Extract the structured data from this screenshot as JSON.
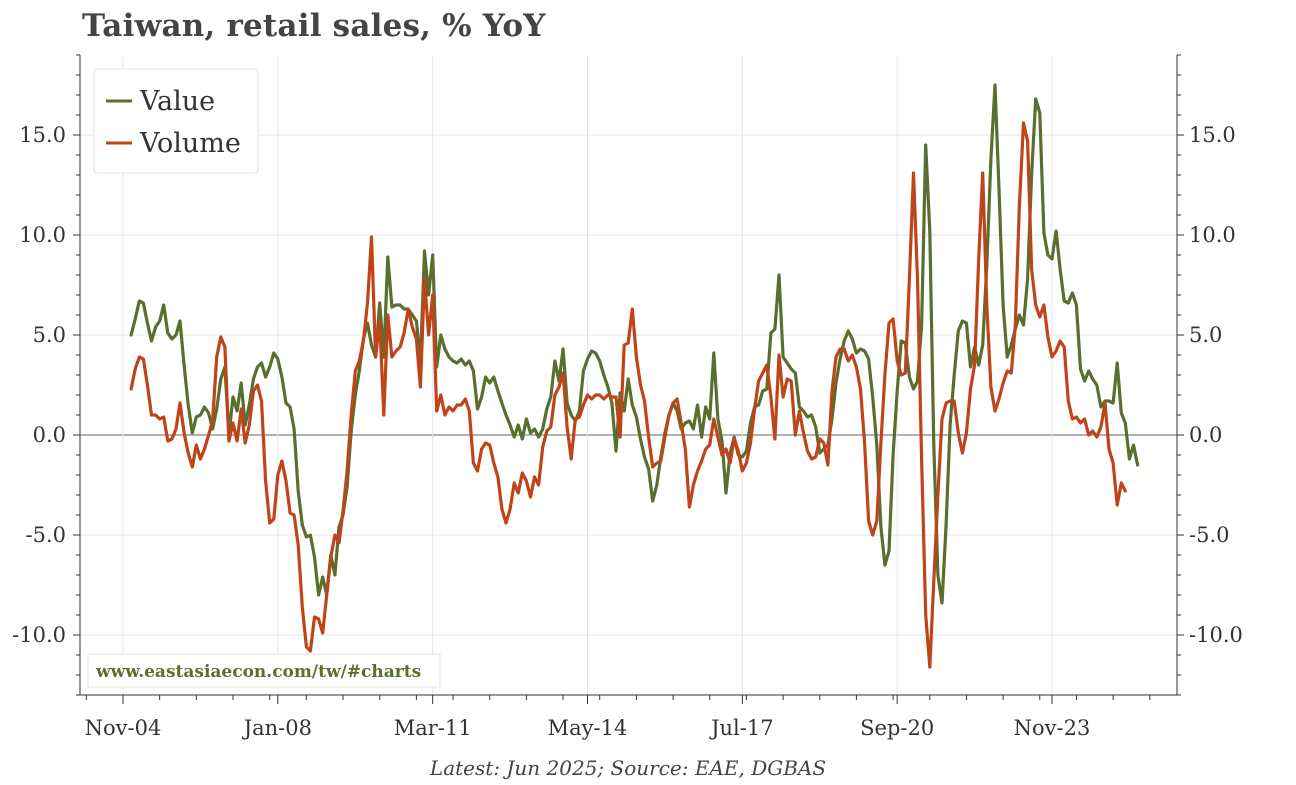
{
  "chart_data": {
    "type": "line",
    "title": "Taiwan, retail sales, % YoY",
    "source": "Latest: Jun 2025; Source: EAE, DGBAS",
    "watermark": "www.eastasiaecon.com/tw/#charts",
    "x_tick_labels": [
      "Nov-04",
      "Jan-08",
      "Mar-11",
      "May-14",
      "Jul-17",
      "Sep-20",
      "Nov-23"
    ],
    "y_tick_labels": [
      "-10.0",
      "-5.0",
      "0.0",
      "5.0",
      "10.0",
      "15.0"
    ],
    "y_tick_values": [
      -10,
      -5,
      0,
      5,
      10,
      15
    ],
    "ylim": [
      -13,
      19
    ],
    "x_start": "Jan-05",
    "x_end": "Jun-25",
    "frequency": "monthly",
    "grid": true,
    "legend_position": "top-left",
    "colors": {
      "Value": "#5a6e2e",
      "Volume": "#c0441a",
      "zero_line": "#999999",
      "watermark": "#5a6e2e"
    },
    "series": [
      {
        "name": "Value",
        "x_start": "Jan-05",
        "values": [
          5.0,
          5.8,
          6.7,
          6.6,
          5.6,
          4.7,
          5.4,
          5.7,
          6.5,
          5.1,
          4.8,
          5.0,
          5.7,
          3.5,
          1.5,
          0.1,
          0.9,
          1.0,
          1.4,
          1.1,
          0.3,
          1.3,
          2.8,
          3.4,
          0.0,
          1.9,
          1.2,
          2.6,
          0.5,
          1.5,
          2.8,
          3.4,
          3.6,
          2.9,
          3.4,
          4.1,
          3.8,
          2.9,
          1.6,
          1.4,
          0.3,
          -2.8,
          -4.5,
          -5.1,
          -5.0,
          -6.1,
          -8.0,
          -7.1,
          -8.0,
          -6.0,
          -7.0,
          -4.6,
          -4.0,
          -2.6,
          0.2,
          2.0,
          3.2,
          4.8,
          5.6,
          4.5,
          3.9,
          6.6,
          3.9,
          8.9,
          6.4,
          6.5,
          6.5,
          6.3,
          6.3,
          6.0,
          5.7,
          3.6,
          9.2,
          7.0,
          9.0,
          3.4,
          5.0,
          4.3,
          3.9,
          3.7,
          3.6,
          3.8,
          3.5,
          3.7,
          3.2,
          1.3,
          1.9,
          2.9,
          2.6,
          2.9,
          2.2,
          1.6,
          1.0,
          0.5,
          -0.1,
          0.5,
          -0.2,
          0.8,
          0.1,
          0.3,
          -0.1,
          0.3,
          1.3,
          1.9,
          3.7,
          2.7,
          4.3,
          1.6,
          1.0,
          0.7,
          1.2,
          3.2,
          3.8,
          4.2,
          4.1,
          3.7,
          3.0,
          2.4,
          1.6,
          -0.8,
          2.1,
          1.2,
          2.8,
          1.5,
          0.9,
          -0.2,
          -1.1,
          -1.7,
          -3.3,
          -2.5,
          -1.1,
          0.1,
          1.0,
          1.6,
          1.2,
          0.3,
          0.6,
          0.7,
          0.3,
          1.5,
          -0.1,
          1.4,
          0.8,
          4.1,
          0.8,
          -0.3,
          -2.9,
          -0.9,
          -0.1,
          -1.0,
          -1.1,
          -0.8,
          0.6,
          1.4,
          1.5,
          2.2,
          2.3,
          5.1,
          5.3,
          8.0,
          3.9,
          3.6,
          3.3,
          3.1,
          1.4,
          1.2,
          0.9,
          1.0,
          0.4,
          -0.9,
          -0.7,
          -0.5,
          0.8,
          2.6,
          3.8,
          4.7,
          5.2,
          4.8,
          4.1,
          4.3,
          4.2,
          3.8,
          1.9,
          -0.5,
          -4.6,
          -6.5,
          -5.8,
          -1.0,
          2.2,
          4.7,
          4.6,
          2.9,
          2.3,
          2.7,
          5.5,
          14.5,
          10.2,
          -0.5,
          -7.0,
          -8.4,
          -4.5,
          0.5,
          3.0,
          5.2,
          5.7,
          5.6,
          3.4,
          4.4,
          3.5,
          4.5,
          8.5,
          13.8,
          17.5,
          12.3,
          6.5,
          3.9,
          4.5,
          5.3,
          6.0,
          5.5,
          7.8,
          13.0,
          16.8,
          16.1,
          10.1,
          9.0,
          8.8,
          10.2,
          8.3,
          6.7,
          6.6,
          7.1,
          6.5,
          3.3,
          2.7,
          3.2,
          2.8,
          2.5,
          1.4,
          1.7,
          1.7,
          1.6,
          3.6,
          1.1,
          0.6,
          -1.2,
          -0.5,
          -1.5
        ]
      },
      {
        "name": "Volume",
        "x_start": "Jan-05",
        "values": [
          2.3,
          3.3,
          3.9,
          3.8,
          2.5,
          1.0,
          1.0,
          0.8,
          0.9,
          -0.3,
          -0.2,
          0.3,
          1.6,
          0.1,
          -0.9,
          -1.6,
          -0.5,
          -1.2,
          -0.7,
          0.0,
          0.7,
          3.9,
          4.9,
          4.4,
          -0.3,
          0.6,
          -0.3,
          1.3,
          -0.4,
          0.5,
          2.2,
          2.5,
          1.7,
          -2.3,
          -4.4,
          -4.2,
          -2.0,
          -1.3,
          -2.3,
          -3.9,
          -4.0,
          -5.5,
          -8.6,
          -10.6,
          -10.8,
          -9.1,
          -9.2,
          -9.9,
          -8.0,
          -6.1,
          -5.0,
          -5.4,
          -3.8,
          -1.8,
          1.0,
          3.2,
          3.7,
          4.7,
          6.6,
          9.9,
          3.9,
          5.7,
          1.0,
          6.0,
          3.9,
          4.2,
          4.4,
          5.1,
          6.3,
          5.4,
          4.8,
          2.4,
          7.8,
          5.0,
          7.0,
          1.2,
          2.0,
          1.0,
          1.4,
          1.2,
          1.5,
          1.5,
          1.8,
          1.2,
          -1.4,
          -1.8,
          -0.7,
          -0.4,
          -0.5,
          -1.4,
          -2.1,
          -3.7,
          -4.4,
          -3.7,
          -2.4,
          -2.9,
          -1.9,
          -2.3,
          -3.1,
          -2.1,
          -2.5,
          -0.6,
          0.2,
          0.4,
          2.0,
          2.4,
          3.1,
          0.4,
          -1.2,
          0.8,
          0.9,
          1.5,
          2.0,
          1.8,
          2.0,
          2.0,
          1.8,
          2.0,
          1.9,
          1.9,
          -0.1,
          4.5,
          4.6,
          6.3,
          3.9,
          2.5,
          1.7,
          -0.1,
          -1.6,
          -1.4,
          -1.3,
          -0.1,
          1.0,
          1.6,
          1.8,
          0.6,
          -0.7,
          -3.6,
          -2.5,
          -1.8,
          -1.3,
          -0.7,
          -0.5,
          0.8,
          -0.1,
          -1.0,
          -0.7,
          -1.4,
          -0.2,
          -0.8,
          -1.8,
          -1.4,
          -0.4,
          1.3,
          2.7,
          3.1,
          3.5,
          1.9,
          -0.2,
          4.0,
          1.9,
          2.8,
          2.7,
          0.0,
          1.2,
          0.1,
          -0.8,
          -1.2,
          -1.1,
          -0.2,
          -0.4,
          -1.5,
          2.2,
          3.9,
          4.3,
          4.3,
          3.7,
          4.0,
          3.4,
          2.3,
          -0.4,
          -4.3,
          -5.0,
          -4.3,
          -0.4,
          3.0,
          5.6,
          5.8,
          3.7,
          3.0,
          3.1,
          7.8,
          13.1,
          7.8,
          -1.2,
          -9.0,
          -11.6,
          -7.3,
          -3.0,
          0.8,
          1.6,
          1.7,
          1.7,
          0.1,
          -0.9,
          0.1,
          2.3,
          3.5,
          8.8,
          13.1,
          6.5,
          2.4,
          1.2,
          1.8,
          2.6,
          3.2,
          3.1,
          5.5,
          11.5,
          15.6,
          14.7,
          8.3,
          6.5,
          5.9,
          6.5,
          4.9,
          3.9,
          4.2,
          4.7,
          4.4,
          1.7,
          0.8,
          0.9,
          0.6,
          0.8,
          0.0,
          0.2,
          -0.1,
          0.4,
          1.6,
          -0.7,
          -1.4,
          -3.5,
          -2.4,
          -2.8
        ]
      }
    ]
  }
}
